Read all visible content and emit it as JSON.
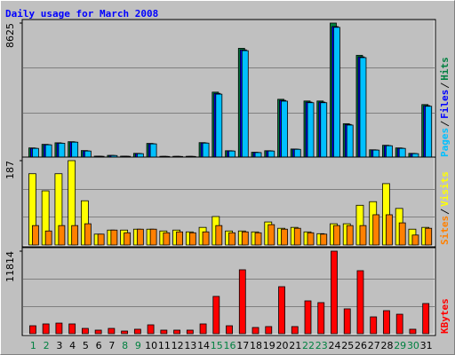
{
  "title": "Daily usage for March 2008",
  "chart_data": [
    {
      "type": "bar",
      "ylim": [
        0,
        8625
      ],
      "yticks": [
        8625
      ],
      "series": [
        {
          "name": "Hits",
          "color": "#008040",
          "values": [
            590,
            820,
            920,
            990,
            420,
            60,
            110,
            60,
            240,
            880,
            50,
            50,
            50,
            930,
            4180,
            410,
            7000,
            310,
            410,
            3720,
            520,
            3610,
            3610,
            8625,
            2150,
            6550,
            470,
            760,
            590,
            240,
            3380
          ]
        },
        {
          "name": "Files",
          "color": "#0000ff",
          "values": [
            570,
            800,
            900,
            970,
            400,
            55,
            105,
            55,
            230,
            860,
            45,
            45,
            45,
            910,
            4100,
            400,
            6900,
            300,
            400,
            3650,
            510,
            3540,
            3540,
            8400,
            2100,
            6450,
            460,
            740,
            570,
            230,
            3310
          ]
        },
        {
          "name": "Pages",
          "color": "#00c0ff",
          "values": [
            560,
            790,
            890,
            960,
            390,
            50,
            100,
            50,
            220,
            850,
            40,
            40,
            40,
            900,
            4050,
            390,
            6850,
            290,
            390,
            3600,
            500,
            3500,
            3500,
            8350,
            2060,
            6400,
            450,
            730,
            560,
            220,
            3270
          ]
        }
      ]
    },
    {
      "type": "bar",
      "ylim": [
        0,
        187
      ],
      "yticks": [
        187
      ],
      "series": [
        {
          "name": "Visits",
          "color": "#ffff00",
          "values": [
            158,
            120,
            158,
            187,
            98,
            24,
            33,
            33,
            35,
            35,
            31,
            33,
            29,
            39,
            63,
            31,
            31,
            29,
            51,
            37,
            39,
            29,
            25,
            47,
            47,
            88,
            96,
            136,
            81,
            35,
            39
          ]
        },
        {
          "name": "Sites",
          "color": "#ff8000",
          "values": [
            43,
            31,
            43,
            43,
            47,
            24,
            33,
            27,
            35,
            35,
            27,
            29,
            27,
            29,
            43,
            27,
            29,
            27,
            45,
            35,
            37,
            27,
            24,
            43,
            43,
            43,
            67,
            67,
            49,
            22,
            37
          ]
        }
      ]
    },
    {
      "type": "bar",
      "ylim": [
        0,
        11814
      ],
      "yticks": [
        11814
      ],
      "series": [
        {
          "name": "KBytes",
          "color": "#ff0000",
          "values": [
            1140,
            1400,
            1520,
            1400,
            760,
            510,
            760,
            380,
            640,
            1270,
            510,
            510,
            510,
            1400,
            5340,
            1140,
            9150,
            890,
            1020,
            6730,
            1020,
            4700,
            4450,
            11814,
            3560,
            9020,
            2410,
            3300,
            2790,
            640,
            4320
          ]
        }
      ],
      "categories": [
        "1",
        "2",
        "3",
        "4",
        "5",
        "6",
        "7",
        "8",
        "9",
        "10",
        "11",
        "12",
        "13",
        "14",
        "15",
        "16",
        "17",
        "18",
        "19",
        "20",
        "21",
        "22",
        "23",
        "24",
        "25",
        "26",
        "27",
        "28",
        "29",
        "30",
        "31"
      ],
      "category_colors": [
        "#008040",
        "#008040",
        "#000000",
        "#000000",
        "#000000",
        "#000000",
        "#000000",
        "#008040",
        "#008040",
        "#000000",
        "#000000",
        "#000000",
        "#000000",
        "#000000",
        "#008040",
        "#008040",
        "#000000",
        "#000000",
        "#000000",
        "#000000",
        "#000000",
        "#008040",
        "#008040",
        "#000000",
        "#000000",
        "#000000",
        "#000000",
        "#000000",
        "#008040",
        "#008040",
        "#000000"
      ]
    }
  ]
}
